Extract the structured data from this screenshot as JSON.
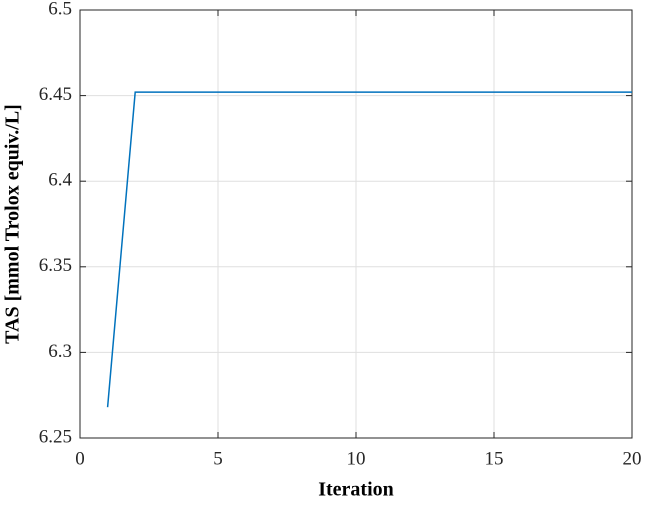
{
  "chart_data": {
    "type": "line",
    "x_label": "Iteration",
    "y_label": "TAS [mmol Trolox equiv./L]",
    "x": [
      1,
      2,
      3,
      4,
      5,
      6,
      7,
      8,
      9,
      10,
      11,
      12,
      13,
      14,
      15,
      16,
      17,
      18,
      19,
      20
    ],
    "series": [
      {
        "color": "#0072bd",
        "values": [
          6.268,
          6.452,
          6.452,
          6.452,
          6.452,
          6.452,
          6.452,
          6.452,
          6.452,
          6.452,
          6.452,
          6.452,
          6.452,
          6.452,
          6.452,
          6.452,
          6.452,
          6.452,
          6.452,
          6.452
        ]
      }
    ],
    "xlim": [
      0,
      20
    ],
    "ylim": [
      6.25,
      6.5
    ],
    "xticks": [
      0,
      5,
      10,
      15,
      20
    ],
    "yticks": [
      6.25,
      6.3,
      6.35,
      6.4,
      6.45,
      6.5
    ],
    "grid": true
  }
}
